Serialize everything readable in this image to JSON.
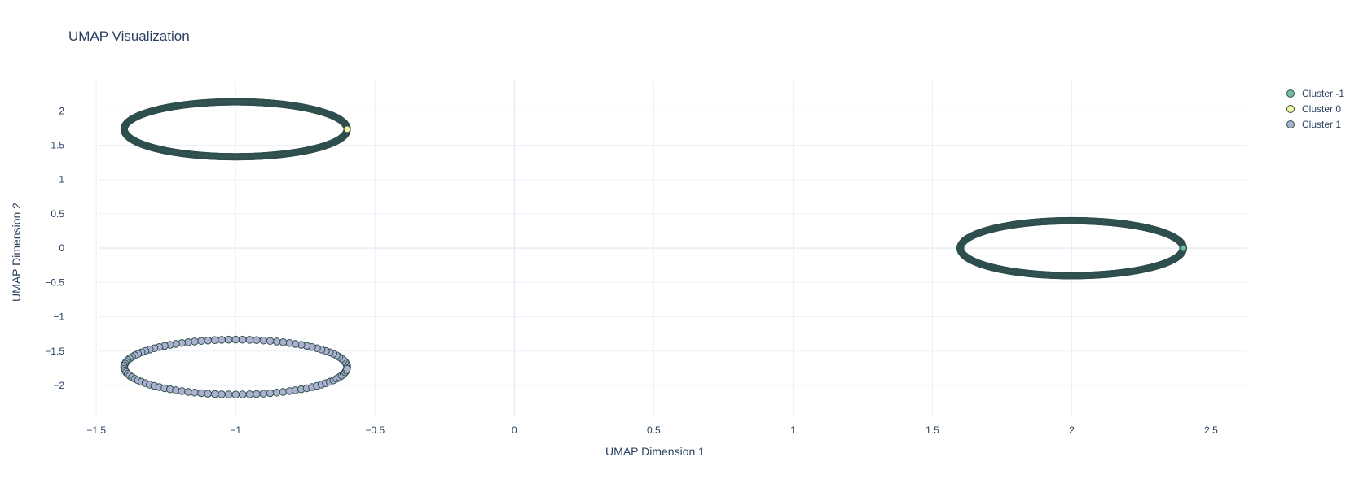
{
  "chart_data": {
    "type": "scatter",
    "title": "UMAP Visualization",
    "xlabel": "UMAP Dimension 1",
    "ylabel": "UMAP Dimension 2",
    "xlim": [
      -1.6,
      2.63
    ],
    "ylim": [
      -2.45,
      2.43
    ],
    "x_ticks": [
      -1.5,
      -1,
      -0.5,
      0,
      0.5,
      1,
      1.5,
      2,
      2.5
    ],
    "x_tick_labels": [
      "−1.5",
      "−1",
      "−0.5",
      "0",
      "0.5",
      "1",
      "1.5",
      "2",
      "2.5"
    ],
    "y_ticks": [
      -2,
      -1.5,
      -1,
      -0.5,
      0,
      0.5,
      1,
      1.5,
      2
    ],
    "y_tick_labels": [
      "−2",
      "−1.5",
      "−1",
      "−0.5",
      "0",
      "0.5",
      "1",
      "1.5",
      "2"
    ],
    "grid": true,
    "legend_position": "top-right",
    "series": [
      {
        "name": "Cluster -1",
        "color": "#6fbf9a",
        "shape": "ring",
        "center": [
          2.0,
          0.0
        ],
        "radius_x": 0.4,
        "radius_y": 0.4,
        "point_count": 1000,
        "highlight_point": [
          2.4,
          0.0
        ]
      },
      {
        "name": "Cluster 0",
        "color": "#f4f59c",
        "shape": "ring",
        "center": [
          -1.0,
          1.732
        ],
        "radius_x": 0.4,
        "radius_y": 0.4,
        "point_count": 1000,
        "highlight_point": [
          -0.6,
          1.732
        ]
      },
      {
        "name": "Cluster 1",
        "color": "#aab2d0",
        "shape": "ring",
        "center": [
          -1.0,
          -1.732
        ],
        "radius_x": 0.4,
        "radius_y": 0.4,
        "point_count": 100
      }
    ]
  }
}
